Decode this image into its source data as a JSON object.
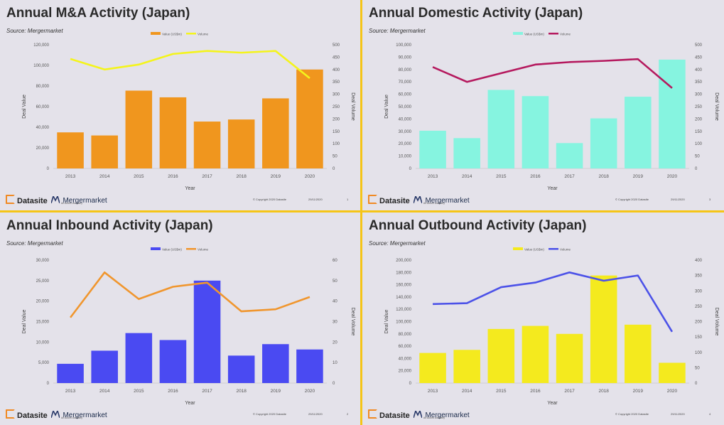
{
  "footer": {
    "datasite": "Datasite",
    "mergermarket": "Mergermarket",
    "mergermarket_sub": "An Acuris company",
    "copyright": "© Copyright 2020 Datasite",
    "date": "29/11/2020"
  },
  "colors": {
    "panel_bg": "#e4e2ea",
    "divider": "#f5c518",
    "datasite_accent": "#f08a24"
  },
  "chart_data": [
    {
      "type": "bar",
      "title": "Annual M&A Activity (Japan)",
      "source": "Source: Mergermarket",
      "categories": [
        "2013",
        "2014",
        "2015",
        "2016",
        "2017",
        "2018",
        "2019",
        "2020"
      ],
      "series": [
        {
          "name": "Value (US$m)",
          "kind": "bar",
          "axis": "left",
          "color": "#f0961e",
          "values": [
            35000,
            32000,
            75500,
            69000,
            45500,
            47500,
            68000,
            96000
          ]
        },
        {
          "name": "Volume",
          "kind": "line",
          "axis": "right",
          "color": "#f4f41c",
          "values": [
            443,
            400,
            420,
            463,
            475,
            468,
            475,
            365
          ]
        }
      ],
      "xlabel": "Year",
      "ylabel": "Deal Value",
      "y2label": "Deal Volume",
      "ylim": [
        0,
        120000
      ],
      "yticks": [
        0,
        20000,
        40000,
        60000,
        80000,
        100000,
        120000
      ],
      "ytick_labels": [
        "0",
        "20,000",
        "40,000",
        "60,000",
        "80,000",
        "100,000",
        "120,000"
      ],
      "y2lim": [
        0,
        500
      ],
      "y2ticks": [
        0,
        50,
        100,
        150,
        200,
        250,
        300,
        350,
        400,
        450,
        500
      ],
      "page": "1"
    },
    {
      "type": "bar",
      "title": "Annual Domestic Activity (Japan)",
      "source": "Source: Mergermarket",
      "categories": [
        "2013",
        "2014",
        "2015",
        "2016",
        "2017",
        "2018",
        "2019",
        "2020"
      ],
      "series": [
        {
          "name": "Value (US$m)",
          "kind": "bar",
          "axis": "left",
          "color": "#86f4e0",
          "values": [
            30500,
            24500,
            63500,
            58500,
            20500,
            40500,
            58000,
            88000
          ]
        },
        {
          "name": "Volume",
          "kind": "line",
          "axis": "right",
          "color": "#b5195e",
          "values": [
            410,
            350,
            385,
            420,
            430,
            435,
            442,
            325
          ]
        }
      ],
      "xlabel": "Year",
      "ylabel": "Deal Value",
      "y2label": "Deal Volume",
      "ylim": [
        0,
        100000
      ],
      "yticks": [
        0,
        10000,
        20000,
        30000,
        40000,
        50000,
        60000,
        70000,
        80000,
        90000,
        100000
      ],
      "ytick_labels": [
        "0",
        "10,000",
        "20,000",
        "30,000",
        "40,000",
        "50,000",
        "60,000",
        "70,000",
        "80,000",
        "90,000",
        "100,000"
      ],
      "y2lim": [
        0,
        500
      ],
      "y2ticks": [
        0,
        50,
        100,
        150,
        200,
        250,
        300,
        350,
        400,
        450,
        500
      ],
      "page": "3"
    },
    {
      "type": "bar",
      "title": "Annual Inbound Activity (Japan)",
      "source": "Source: Mergermarket",
      "categories": [
        "2013",
        "2014",
        "2015",
        "2016",
        "2017",
        "2018",
        "2019",
        "2020"
      ],
      "series": [
        {
          "name": "Value (US$m)",
          "kind": "bar",
          "axis": "left",
          "color": "#4a4af2",
          "values": [
            4700,
            7900,
            12200,
            10500,
            25000,
            6700,
            9500,
            8200
          ]
        },
        {
          "name": "Volume",
          "kind": "line",
          "axis": "right",
          "color": "#f0962e",
          "values": [
            32,
            54,
            41,
            47,
            49,
            35,
            36,
            42
          ]
        }
      ],
      "xlabel": "Year",
      "ylabel": "Deal Value",
      "y2label": "Deal Volume",
      "ylim": [
        0,
        30000
      ],
      "yticks": [
        0,
        5000,
        10000,
        15000,
        20000,
        25000,
        30000
      ],
      "ytick_labels": [
        "0",
        "5,000",
        "10,000",
        "15,000",
        "20,000",
        "25,000",
        "30,000"
      ],
      "y2lim": [
        0,
        60
      ],
      "y2ticks": [
        0,
        10,
        20,
        30,
        40,
        50,
        60
      ],
      "page": "2"
    },
    {
      "type": "bar",
      "title": "Annual Outbound Activity (Japan)",
      "source": "Source: Mergermarket",
      "categories": [
        "2013",
        "2014",
        "2015",
        "2016",
        "2017",
        "2018",
        "2019",
        "2020"
      ],
      "series": [
        {
          "name": "Value (US$m)",
          "kind": "bar",
          "axis": "left",
          "color": "#f4ea1e",
          "values": [
            49000,
            54000,
            88000,
            93000,
            80000,
            175000,
            95000,
            33000
          ]
        },
        {
          "name": "Volume",
          "kind": "line",
          "axis": "right",
          "color": "#4c52e8",
          "values": [
            257,
            260,
            312,
            327,
            360,
            333,
            350,
            167
          ]
        }
      ],
      "xlabel": "Year",
      "ylabel": "Deal Value",
      "y2label": "Deal Volume",
      "ylim": [
        0,
        200000
      ],
      "yticks": [
        0,
        20000,
        40000,
        60000,
        80000,
        100000,
        120000,
        140000,
        160000,
        180000,
        200000
      ],
      "ytick_labels": [
        "0",
        "20,000",
        "40,000",
        "60,000",
        "80,000",
        "100,000",
        "120,000",
        "140,000",
        "160,000",
        "180,000",
        "200,000"
      ],
      "y2lim": [
        0,
        400
      ],
      "y2ticks": [
        0,
        50,
        100,
        150,
        200,
        250,
        300,
        350,
        400
      ],
      "page": "4"
    }
  ]
}
